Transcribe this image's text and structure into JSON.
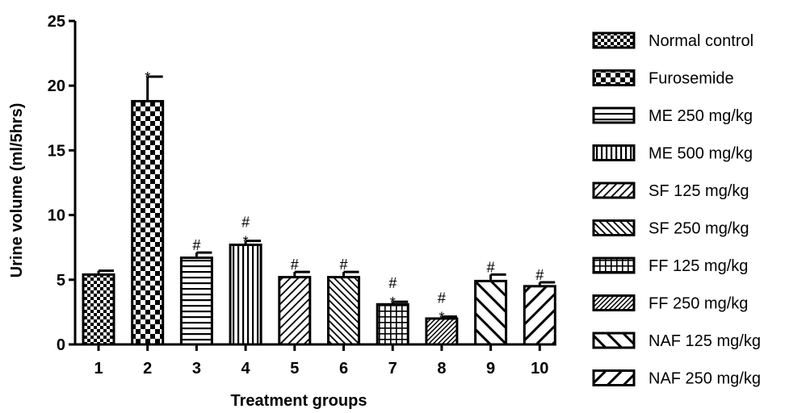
{
  "chart_data": {
    "type": "bar",
    "title": "",
    "xlabel": "Treatment groups",
    "ylabel": "Urine volume (ml/5hrs)",
    "ylim": [
      0,
      25
    ],
    "yticks": [
      "0",
      "5",
      "10",
      "15",
      "20",
      "25"
    ],
    "grid": false,
    "legend_position": "right",
    "categories": [
      "1",
      "2",
      "3",
      "4",
      "5",
      "6",
      "7",
      "8",
      "9",
      "10"
    ],
    "values": [
      5.4,
      18.8,
      6.7,
      7.7,
      5.2,
      5.2,
      3.1,
      2.0,
      4.9,
      4.5
    ],
    "errors": [
      0.3,
      1.9,
      0.4,
      0.3,
      0.4,
      0.4,
      0.2,
      0.15,
      0.5,
      0.3
    ],
    "annotations": [
      [],
      [
        "*"
      ],
      [
        "#"
      ],
      [
        "*",
        "#"
      ],
      [
        "#"
      ],
      [
        "#"
      ],
      [
        "*",
        "#"
      ],
      [
        "*",
        "#"
      ],
      [
        "#"
      ],
      [
        "#"
      ]
    ],
    "legend": [
      {
        "name": "Normal control",
        "pattern": "checker-fine"
      },
      {
        "name": "Furosemide",
        "pattern": "checker-coarse"
      },
      {
        "name": "ME 250 mg/kg",
        "pattern": "hlines"
      },
      {
        "name": "ME 500 mg/kg",
        "pattern": "vlines"
      },
      {
        "name": "SF 125 mg/kg",
        "pattern": "diag-up"
      },
      {
        "name": "SF 250 mg/kg",
        "pattern": "diag-down"
      },
      {
        "name": "FF 125 mg/kg",
        "pattern": "grid"
      },
      {
        "name": "FF 250 mg/kg",
        "pattern": "diag-up-fine"
      },
      {
        "name": "NAF 125 mg/kg",
        "pattern": "diag-down-wide"
      },
      {
        "name": "NAF 250 mg/kg",
        "pattern": "diag-up-wide"
      }
    ]
  }
}
